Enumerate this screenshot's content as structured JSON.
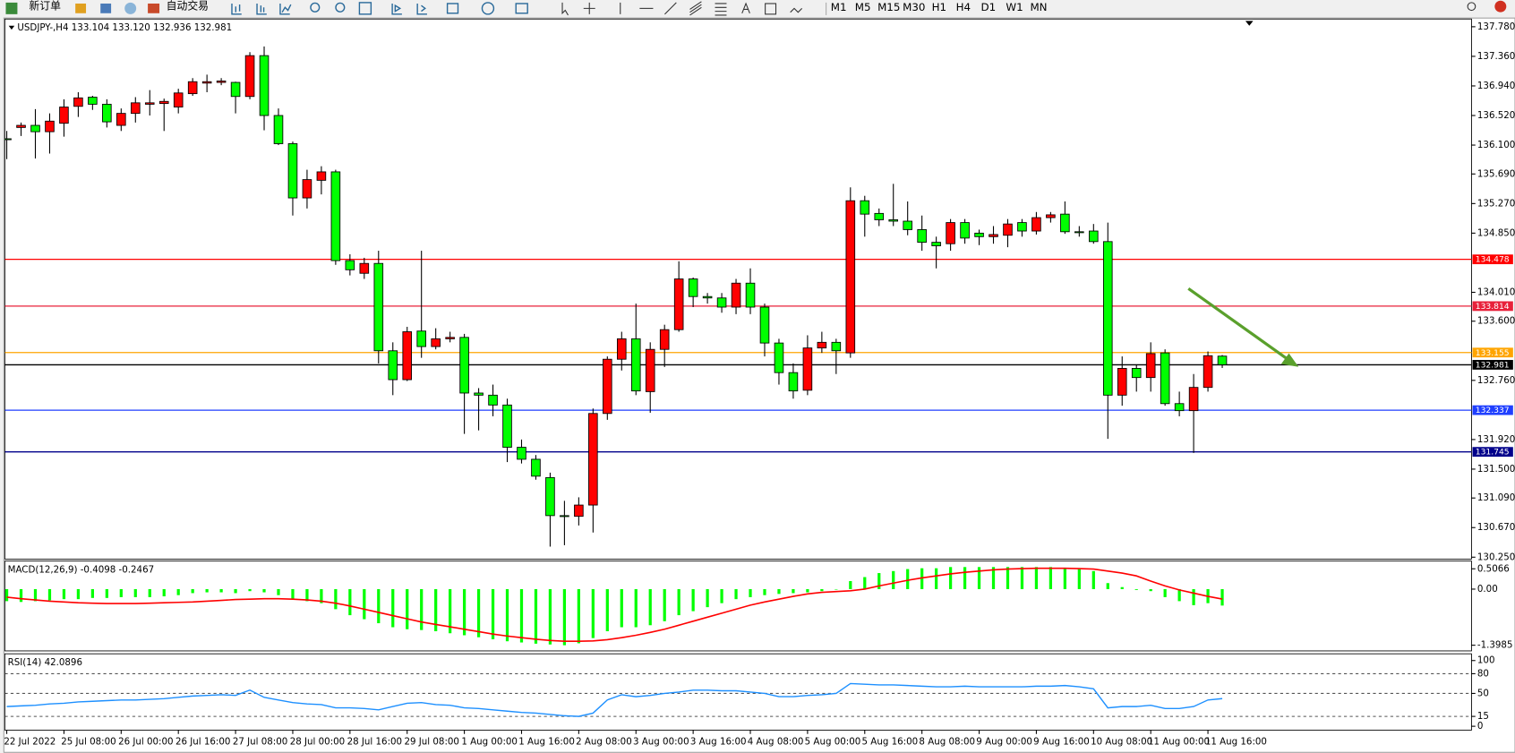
{
  "toolbar": {
    "new_order": "新订单",
    "auto_trading": "自动交易",
    "timeframes": [
      "M1",
      "M5",
      "M15",
      "M30",
      "H1",
      "H4",
      "D1",
      "W1",
      "MN"
    ]
  },
  "chart_data": [
    {
      "type": "candlestick",
      "title": "USDJPY-,H4  133.104 133.120 132.936 132.981",
      "categories": [
        "22 Jul 2022",
        null,
        null,
        null,
        "25 Jul 08:00",
        null,
        null,
        null,
        "26 Jul 00:00",
        null,
        null,
        null,
        "26 Jul 16:00",
        null,
        null,
        null,
        "27 Jul 08:00",
        null,
        null,
        null,
        "28 Jul 00:00",
        null,
        null,
        null,
        "28 Jul 16:00",
        null,
        null,
        null,
        "29 Jul 08:00",
        null,
        null,
        null,
        "1 Aug 00:00",
        null,
        null,
        null,
        "1 Aug 16:00",
        null,
        null,
        null,
        "2 Aug 08:00",
        null,
        null,
        null,
        "3 Aug 00:00",
        null,
        null,
        null,
        "3 Aug 16:00",
        null,
        null,
        null,
        "4 Aug 08:00",
        null,
        null,
        null,
        "5 Aug 00:00",
        null,
        null,
        null,
        "5 Aug 16:00",
        null,
        null,
        null,
        "8 Aug 08:00",
        null,
        null,
        null,
        "9 Aug 00:00",
        null,
        null,
        null,
        "9 Aug 16:00",
        null,
        null,
        null,
        "10 Aug 08:00",
        null,
        null,
        null,
        "11 Aug 00:00",
        null,
        null,
        null,
        "11 Aug 16:00",
        null
      ],
      "open": [
        136.19,
        136.35,
        136.38,
        136.29,
        136.41,
        136.65,
        136.78,
        136.68,
        136.38,
        136.55,
        136.68,
        136.69,
        136.64,
        136.83,
        136.98,
        136.99,
        136.99,
        136.79,
        137.37,
        136.52,
        136.12,
        135.35,
        135.6,
        135.72,
        134.46,
        134.28,
        134.42,
        133.18,
        132.77,
        133.46,
        133.24,
        133.35,
        133.37,
        132.58,
        132.55,
        132.41,
        131.81,
        131.64,
        131.38,
        130.84,
        130.83,
        130.99,
        132.29,
        133.06,
        133.35,
        132.6,
        133.2,
        133.48,
        134.2,
        133.95,
        133.93,
        133.8,
        134.14,
        133.8,
        133.29,
        132.87,
        132.62,
        133.22,
        133.3,
        133.15,
        135.31,
        135.13,
        135.04,
        135.02,
        134.9,
        134.72,
        134.7,
        135.0,
        134.85,
        134.8,
        134.82,
        135.0,
        134.88,
        135.07,
        135.12,
        134.87,
        134.88,
        134.73,
        132.55,
        132.93,
        132.8,
        133.15,
        132.43,
        132.33,
        132.66,
        133.104
      ],
      "high": [
        136.3,
        136.42,
        136.61,
        136.55,
        136.75,
        136.85,
        136.8,
        136.75,
        136.62,
        136.78,
        136.88,
        136.76,
        136.9,
        137.05,
        137.1,
        137.05,
        137.0,
        137.42,
        137.5,
        136.62,
        136.15,
        135.75,
        135.8,
        135.75,
        134.55,
        134.5,
        134.6,
        133.3,
        133.52,
        134.6,
        133.5,
        133.45,
        133.42,
        132.65,
        132.7,
        132.5,
        131.92,
        131.7,
        131.45,
        131.05,
        131.1,
        132.36,
        133.1,
        133.45,
        133.85,
        133.3,
        133.55,
        134.45,
        134.22,
        134.0,
        134.0,
        134.2,
        134.35,
        133.85,
        133.35,
        133.0,
        133.4,
        133.45,
        133.35,
        135.5,
        135.38,
        135.2,
        135.55,
        135.3,
        135.1,
        134.8,
        135.05,
        135.05,
        134.9,
        134.95,
        135.05,
        135.05,
        135.15,
        135.15,
        135.3,
        134.95,
        134.98,
        135.0,
        133.1,
        132.98,
        133.3,
        133.2,
        132.6,
        132.85,
        133.17,
        133.12
      ],
      "low": [
        135.9,
        136.23,
        135.91,
        135.98,
        136.22,
        136.5,
        136.6,
        136.35,
        136.3,
        136.42,
        136.52,
        136.3,
        136.55,
        136.8,
        136.85,
        136.95,
        136.55,
        136.75,
        136.31,
        136.1,
        135.1,
        135.2,
        135.4,
        134.4,
        134.25,
        134.2,
        133.0,
        132.55,
        132.75,
        133.08,
        133.2,
        133.3,
        132.0,
        132.05,
        132.25,
        131.6,
        131.58,
        131.35,
        130.4,
        130.42,
        130.7,
        130.6,
        132.2,
        132.9,
        132.55,
        132.3,
        132.95,
        133.45,
        133.8,
        133.85,
        133.72,
        133.7,
        133.7,
        133.1,
        132.7,
        132.5,
        132.55,
        133.15,
        132.85,
        133.08,
        134.8,
        134.95,
        134.95,
        134.82,
        134.6,
        134.35,
        134.6,
        134.7,
        134.68,
        134.7,
        134.65,
        134.8,
        134.83,
        135.0,
        134.84,
        134.8,
        134.7,
        131.93,
        132.4,
        132.6,
        132.6,
        132.4,
        132.25,
        131.73,
        132.6,
        132.936
      ],
      "close": [
        136.18,
        136.38,
        136.29,
        136.44,
        136.64,
        136.77,
        136.68,
        136.43,
        136.55,
        136.7,
        136.7,
        136.72,
        136.84,
        137.0,
        137.0,
        137.01,
        136.79,
        137.37,
        136.52,
        136.12,
        135.35,
        135.61,
        135.72,
        134.46,
        134.33,
        134.42,
        133.18,
        132.77,
        133.45,
        133.24,
        133.35,
        133.37,
        132.58,
        132.55,
        132.41,
        131.81,
        131.64,
        131.4,
        130.84,
        130.83,
        130.99,
        132.29,
        133.06,
        133.35,
        132.61,
        133.2,
        133.48,
        134.2,
        133.95,
        133.93,
        133.8,
        134.14,
        133.8,
        133.29,
        132.87,
        132.61,
        133.22,
        133.3,
        133.18,
        135.31,
        135.12,
        135.04,
        135.02,
        134.9,
        134.72,
        134.67,
        135.0,
        134.78,
        134.8,
        134.83,
        134.98,
        134.88,
        135.07,
        135.11,
        134.87,
        134.86,
        134.73,
        132.55,
        132.93,
        132.8,
        133.14,
        132.43,
        132.33,
        132.66,
        133.11,
        132.981
      ],
      "up_color": "#ff0000",
      "down_color": "#00ff00",
      "ylim": [
        130.25,
        137.78
      ],
      "yticks": [
        {
          "value": 137.78,
          "label": "137.780"
        },
        {
          "value": 137.36,
          "label": "137.360"
        },
        {
          "value": 136.94,
          "label": "136.940"
        },
        {
          "value": 136.52,
          "label": "136.520"
        },
        {
          "value": 136.1,
          "label": "136.100"
        },
        {
          "value": 135.69,
          "label": "135.690"
        },
        {
          "value": 135.27,
          "label": "135.270"
        },
        {
          "value": 134.85,
          "label": "134.850"
        },
        {
          "value": 134.01,
          "label": "134.010"
        },
        {
          "value": 133.6,
          "label": "133.600"
        },
        {
          "value": 132.76,
          "label": "132.760"
        },
        {
          "value": 131.92,
          "label": "131.920"
        },
        {
          "value": 131.5,
          "label": "131.500"
        },
        {
          "value": 131.09,
          "label": "131.090"
        },
        {
          "value": 130.67,
          "label": "130.670"
        },
        {
          "value": 130.25,
          "label": "130.250"
        }
      ],
      "levels": [
        {
          "value": 134.478,
          "color": "#ff0000"
        },
        {
          "value": 133.814,
          "color": "#e8213a"
        },
        {
          "value": 133.155,
          "color": "#ffa500"
        },
        {
          "value": 132.981,
          "color": "#000000"
        },
        {
          "value": 132.337,
          "color": "#1f3fff"
        },
        {
          "value": 131.745,
          "color": "#00008b"
        }
      ]
    },
    {
      "type": "macd",
      "title": "MACD(12,26,9) -0.4098 -0.2467",
      "values": [
        -0.3,
        -0.32,
        -0.3,
        -0.28,
        -0.25,
        -0.25,
        -0.22,
        -0.22,
        -0.2,
        -0.2,
        -0.2,
        -0.18,
        -0.15,
        -0.1,
        -0.08,
        -0.08,
        -0.1,
        -0.05,
        -0.08,
        -0.15,
        -0.25,
        -0.3,
        -0.35,
        -0.5,
        -0.65,
        -0.75,
        -0.85,
        -0.95,
        -1.0,
        -1.02,
        -1.05,
        -1.1,
        -1.15,
        -1.2,
        -1.25,
        -1.3,
        -1.33,
        -1.36,
        -1.38,
        -1.3985,
        -1.35,
        -1.22,
        -1.05,
        -0.95,
        -0.95,
        -0.9,
        -0.8,
        -0.65,
        -0.55,
        -0.45,
        -0.35,
        -0.25,
        -0.2,
        -0.15,
        -0.12,
        -0.1,
        -0.08,
        -0.05,
        0.0,
        0.2,
        0.3,
        0.4,
        0.45,
        0.5,
        0.52,
        0.52,
        0.55,
        0.55,
        0.55,
        0.55,
        0.55,
        0.55,
        0.55,
        0.55,
        0.52,
        0.5,
        0.45,
        0.15,
        0.05,
        -0.02,
        -0.05,
        -0.2,
        -0.3,
        -0.4,
        -0.35,
        -0.4098
      ],
      "color": "#00ff00",
      "signal": [
        -0.2,
        -0.24,
        -0.27,
        -0.3,
        -0.32,
        -0.34,
        -0.35,
        -0.36,
        -0.36,
        -0.36,
        -0.35,
        -0.34,
        -0.33,
        -0.32,
        -0.3,
        -0.28,
        -0.26,
        -0.25,
        -0.24,
        -0.24,
        -0.25,
        -0.27,
        -0.3,
        -0.35,
        -0.42,
        -0.5,
        -0.58,
        -0.66,
        -0.74,
        -0.82,
        -0.88,
        -0.94,
        -1.0,
        -1.06,
        -1.12,
        -1.17,
        -1.21,
        -1.25,
        -1.28,
        -1.3,
        -1.3,
        -1.29,
        -1.26,
        -1.21,
        -1.15,
        -1.08,
        -1.0,
        -0.9,
        -0.8,
        -0.7,
        -0.6,
        -0.5,
        -0.4,
        -0.32,
        -0.25,
        -0.18,
        -0.12,
        -0.08,
        -0.06,
        -0.04,
        0.0,
        0.08,
        0.15,
        0.22,
        0.28,
        0.33,
        0.38,
        0.42,
        0.45,
        0.48,
        0.5,
        0.51,
        0.52,
        0.52,
        0.52,
        0.51,
        0.5,
        0.45,
        0.4,
        0.33,
        0.2,
        0.08,
        -0.02,
        -0.1,
        -0.18,
        -0.2467
      ],
      "signal_color": "#ff0000",
      "ylim": [
        -1.54,
        0.7
      ],
      "yticks": [
        0.5066,
        {
          "value": 0,
          "label": "0.00"
        },
        -1.3985
      ]
    },
    {
      "type": "line",
      "title": "RSI(14) 42.0896",
      "values": [
        30,
        31,
        32,
        34,
        35,
        37,
        38,
        39,
        40,
        40,
        41,
        42,
        44,
        46,
        47,
        48,
        47,
        55,
        44,
        40,
        36,
        34,
        33,
        28,
        28,
        27,
        25,
        30,
        35,
        36,
        33,
        32,
        28,
        27,
        25,
        23,
        21,
        20,
        18,
        16,
        15,
        20,
        40,
        48,
        45,
        47,
        50,
        52,
        55,
        55,
        54,
        54,
        52,
        50,
        45,
        45,
        47,
        48,
        50,
        65,
        64,
        63,
        63,
        62,
        61,
        60,
        60,
        61,
        60,
        60,
        60,
        60,
        61,
        61,
        62,
        60,
        57,
        28,
        30,
        30,
        32,
        27,
        27,
        30,
        40,
        42.0896
      ],
      "color": "#1e90ff",
      "ylim": [
        0,
        100
      ],
      "yticks": [
        100,
        80,
        50,
        15,
        0
      ],
      "dashed_grid": true
    }
  ]
}
